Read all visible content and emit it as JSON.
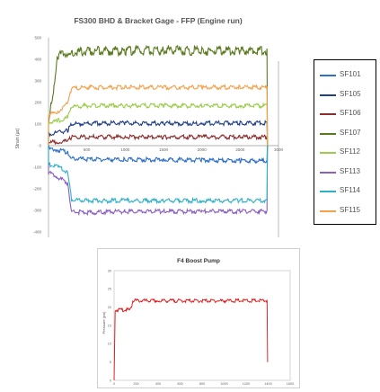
{
  "chart_data": [
    {
      "type": "line",
      "title": "FS300 BHD & Bracket Gage - FFP (Engine run)",
      "ylabel": "Strain (µε)",
      "xlabel": "",
      "ylim": [
        -400,
        500
      ],
      "xlim": [
        0,
        3000
      ],
      "yticks": [
        "500",
        "400",
        "300",
        "200",
        "100",
        "0",
        "-100",
        "-200",
        "-300",
        "-400"
      ],
      "xticks": [
        "500",
        "1000",
        "1500",
        "2000",
        "2500",
        "3000"
      ],
      "grid": false,
      "legend": "right",
      "x": [
        0,
        120,
        250,
        300,
        500,
        1000,
        1500,
        2000,
        2500,
        2850
      ],
      "series": [
        {
          "name": "SF101",
          "color": "#2e6fc9",
          "values": [
            -10,
            -15,
            -25,
            -55,
            -58,
            -60,
            -60,
            -62,
            -65,
            -65
          ]
        },
        {
          "name": "SF105",
          "color": "#1f3f86",
          "values": [
            60,
            65,
            75,
            105,
            108,
            110,
            108,
            108,
            110,
            110
          ]
        },
        {
          "name": "SF106",
          "color": "#8a2e2e",
          "values": [
            20,
            22,
            25,
            45,
            45,
            45,
            45,
            45,
            45,
            45
          ]
        },
        {
          "name": "SF107",
          "color": "#5a7a1f",
          "values": [
            100,
            430,
            445,
            445,
            450,
            450,
            455,
            450,
            450,
            450
          ]
        },
        {
          "name": "SF112",
          "color": "#9ccc4a",
          "values": [
            110,
            120,
            135,
            185,
            190,
            190,
            190,
            190,
            190,
            190
          ]
        },
        {
          "name": "SF113",
          "color": "#8b5fbf",
          "values": [
            -120,
            -140,
            -170,
            -300,
            -305,
            -300,
            -300,
            -300,
            -300,
            -300
          ]
        },
        {
          "name": "SF114",
          "color": "#2fb0c8",
          "values": [
            -80,
            -95,
            -115,
            -245,
            -250,
            -250,
            -250,
            -250,
            -250,
            -250
          ]
        },
        {
          "name": "SF115",
          "color": "#f5a04a",
          "values": [
            150,
            160,
            200,
            270,
            275,
            275,
            275,
            275,
            275,
            275
          ]
        }
      ]
    },
    {
      "type": "line",
      "title": "F4 Boost Pump",
      "ylabel": "Pressure (psi)",
      "xlabel": "",
      "ylim": [
        0,
        30
      ],
      "xlim": [
        0,
        1600
      ],
      "yticks": [
        "30",
        "25",
        "20",
        "15",
        "10",
        "5",
        "0"
      ],
      "xticks": [
        "0",
        "200",
        "400",
        "600",
        "800",
        "1000",
        "1200",
        "1400",
        "1600"
      ],
      "grid": false,
      "legend": "none",
      "x": [
        0,
        10,
        20,
        150,
        155,
        170,
        200,
        400,
        800,
        1200,
        1390,
        1395
      ],
      "series": [
        {
          "name": "",
          "color": "#e01010",
          "values": [
            0,
            19,
            19.5,
            19.5,
            20,
            22,
            22,
            22,
            22,
            22,
            22,
            5
          ]
        }
      ]
    }
  ]
}
